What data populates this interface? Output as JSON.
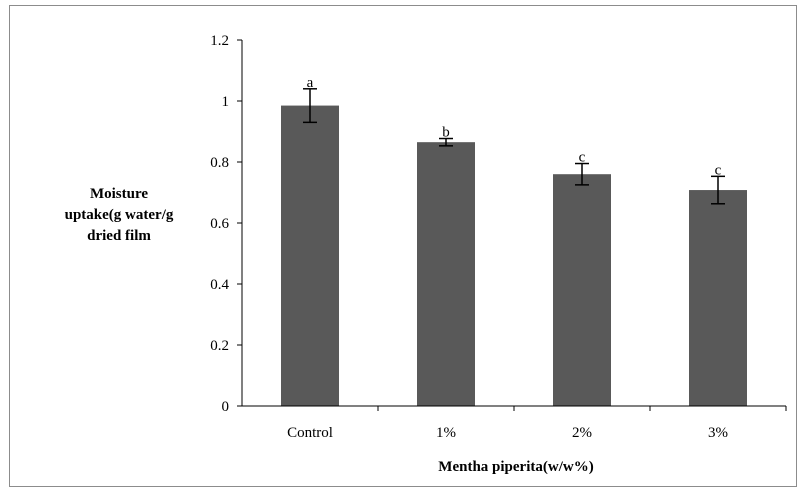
{
  "chart_data": {
    "type": "bar",
    "title": "",
    "xlabel": "Mentha piperita(w/w%)",
    "ylabel": [
      "Moisture",
      "uptake(g water/g",
      "dried film"
    ],
    "categories": [
      "Control",
      "1%",
      "2%",
      "3%"
    ],
    "values": [
      0.985,
      0.865,
      0.76,
      0.708
    ],
    "errors": [
      0.055,
      0.012,
      0.035,
      0.045
    ],
    "significance": [
      "a",
      "b",
      "c",
      "c"
    ],
    "ylim": [
      0,
      1.2
    ],
    "yticks": [
      0,
      0.2,
      0.4,
      0.6,
      0.8,
      1,
      1.2
    ],
    "grid": false,
    "bar_color": "#595959"
  }
}
